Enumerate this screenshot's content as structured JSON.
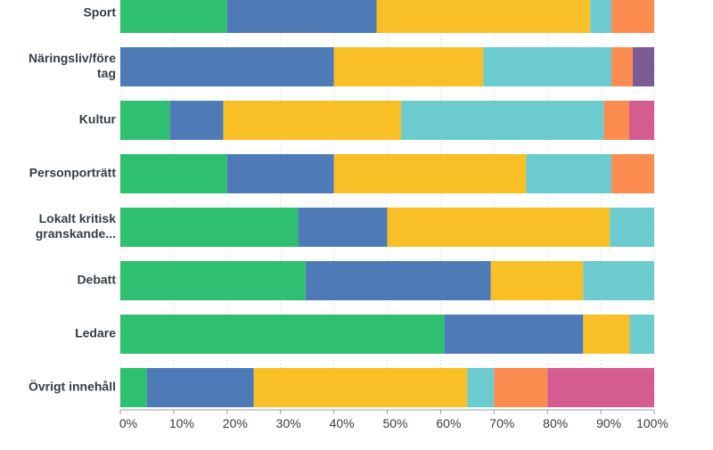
{
  "chart_data": {
    "type": "bar",
    "orientation": "horizontal",
    "stacked": true,
    "categories": [
      [
        "Sport"
      ],
      [
        "Näringsliv/före",
        "tag"
      ],
      [
        "Kultur"
      ],
      [
        "Personporträtt"
      ],
      [
        "Lokalt kritisk",
        "granskande..."
      ],
      [
        "Debatt"
      ],
      [
        "Ledare"
      ],
      [
        "Övrigt innehåll"
      ]
    ],
    "series": [
      {
        "color": "#2fbf71",
        "values": [
          20,
          0,
          9.3,
          20,
          33.3,
          34.7,
          60.7,
          5
        ]
      },
      {
        "color": "#4e7bb8",
        "values": [
          28,
          40,
          10,
          20,
          16.7,
          34.7,
          26,
          20
        ]
      },
      {
        "color": "#f9bf26",
        "values": [
          40,
          28,
          33.3,
          36,
          41.7,
          17.3,
          8.7,
          40
        ]
      },
      {
        "color": "#6ccbcf",
        "values": [
          4,
          24,
          38,
          16,
          8.3,
          13.3,
          4.6,
          5
        ]
      },
      {
        "color": "#fc8b50",
        "values": [
          8,
          4,
          4.7,
          8,
          0,
          0,
          0,
          10
        ]
      },
      {
        "color": "#d45c8e",
        "values": [
          0,
          0,
          4.7,
          0,
          0,
          0,
          0,
          20
        ]
      },
      {
        "color": "#7b5a96",
        "values": [
          0,
          4,
          0,
          0,
          0,
          0,
          0,
          0
        ]
      }
    ],
    "x_ticks": [
      "0%",
      "10%",
      "20%",
      "30%",
      "40%",
      "50%",
      "60%",
      "70%",
      "80%",
      "90%",
      "100%"
    ],
    "xlim": [
      0,
      100
    ],
    "grid": true,
    "legend": "none"
  }
}
